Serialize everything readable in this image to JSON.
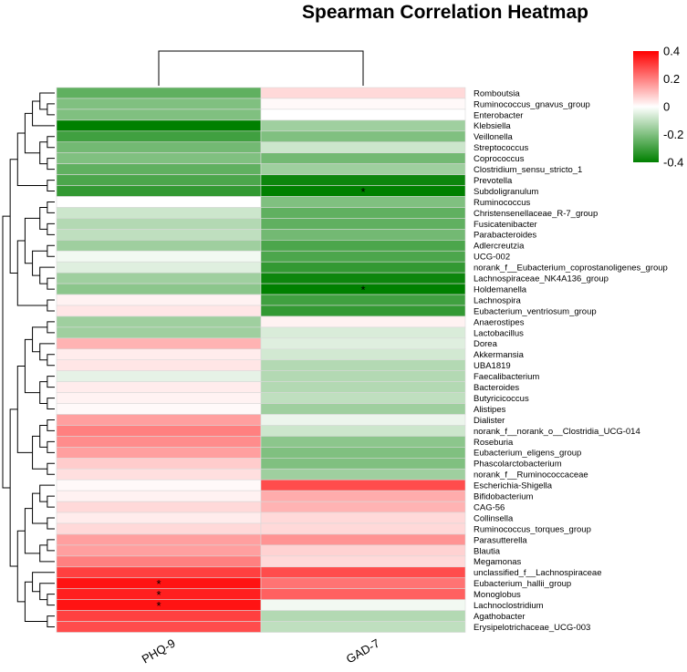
{
  "chart_data": {
    "type": "heatmap",
    "title": "Spearman Correlation Heatmap",
    "columns": [
      "PHQ-9",
      "GAD-7"
    ],
    "rows": [
      "Romboutsia",
      "Ruminococcus_gnavus_group",
      "Enterobacter",
      "Klebsiella",
      "Veillonella",
      "Streptococcus",
      "Coprococcus",
      "Clostridium_sensu_stricto_1",
      "Prevotella",
      "Subdoligranulum",
      "Ruminococcus",
      "Christensenellaceae_R-7_group",
      "Fusicatenibacter",
      "Parabacteroides",
      "Adlercreutzia",
      "UCG-002",
      "norank_f__Eubacterium_coprostanoligenes_group",
      "Lachnospiraceae_NK4A136_group",
      "Holdemanella",
      "Lachnospira",
      "Eubacterium_ventriosum_group",
      "Anaerostipes",
      "Lactobacillus",
      "Dorea",
      "Akkermansia",
      "UBA1819",
      "Faecalibacterium",
      "Bacteroides",
      "Butyricicoccus",
      "Alistipes",
      "Dialister",
      "norank_f__norank_o__Clostridia_UCG-014",
      "Roseburia",
      "Eubacterium_eligens_group",
      "Phascolarctobacterium",
      "norank_f__Ruminococcaceae",
      "Escherichia-Shigella",
      "Bifidobacterium",
      "CAG-56",
      "Collinsella",
      "Ruminococcus_torques_group",
      "Parasutterella",
      "Blautia",
      "Megamonas",
      "unclassified_f__Lachnospiraceae",
      "Eubacterium_hallii_group",
      "Monoglobus",
      "Lachnoclostridium",
      "Agathobacter",
      "Erysipelotrichaceae_UCG-003"
    ],
    "values": [
      [
        -0.25,
        0.06
      ],
      [
        -0.2,
        0.01
      ],
      [
        -0.2,
        0.0
      ],
      [
        -0.4,
        -0.15
      ],
      [
        -0.3,
        -0.2
      ],
      [
        -0.22,
        -0.08
      ],
      [
        -0.2,
        -0.22
      ],
      [
        -0.25,
        -0.15
      ],
      [
        -0.28,
        -0.38
      ],
      [
        -0.32,
        -0.4
      ],
      [
        0.0,
        -0.2
      ],
      [
        -0.08,
        -0.25
      ],
      [
        -0.12,
        -0.25
      ],
      [
        -0.1,
        -0.22
      ],
      [
        -0.15,
        -0.28
      ],
      [
        -0.02,
        -0.28
      ],
      [
        -0.05,
        -0.32
      ],
      [
        -0.15,
        -0.38
      ],
      [
        -0.18,
        -0.4
      ],
      [
        0.02,
        -0.3
      ],
      [
        0.04,
        -0.32
      ],
      [
        -0.15,
        0.02
      ],
      [
        -0.15,
        -0.06
      ],
      [
        0.12,
        -0.05
      ],
      [
        0.03,
        -0.07
      ],
      [
        0.04,
        -0.12
      ],
      [
        -0.04,
        -0.12
      ],
      [
        0.03,
        -0.12
      ],
      [
        0.02,
        -0.1
      ],
      [
        0.01,
        -0.15
      ],
      [
        0.15,
        -0.03
      ],
      [
        0.2,
        -0.08
      ],
      [
        0.18,
        -0.18
      ],
      [
        0.15,
        -0.2
      ],
      [
        0.08,
        -0.2
      ],
      [
        0.05,
        -0.15
      ],
      [
        0.01,
        0.28
      ],
      [
        0.02,
        0.13
      ],
      [
        0.06,
        0.12
      ],
      [
        0.03,
        0.06
      ],
      [
        0.06,
        0.06
      ],
      [
        0.15,
        0.17
      ],
      [
        0.15,
        0.07
      ],
      [
        0.2,
        0.06
      ],
      [
        0.3,
        0.28
      ],
      [
        0.37,
        0.22
      ],
      [
        0.35,
        0.25
      ],
      [
        0.37,
        -0.02
      ],
      [
        0.3,
        -0.12
      ],
      [
        0.28,
        -0.1
      ]
    ],
    "significant": [
      [
        "Subdoligranulum",
        "GAD-7"
      ],
      [
        "Holdemanella",
        "GAD-7"
      ],
      [
        "Eubacterium_hallii_group",
        "PHQ-9"
      ],
      [
        "Monoglobus",
        "PHQ-9"
      ],
      [
        "Lachnoclostridium",
        "PHQ-9"
      ]
    ],
    "significance_marker": "*",
    "colorbar": {
      "range": [
        -0.4,
        0.4
      ],
      "ticks": [
        0.4,
        0.2,
        0,
        -0.2,
        -0.4
      ],
      "tick_labels": [
        "0.4",
        "0.2",
        "0",
        "-0.2",
        "-0.4"
      ],
      "colors": {
        "low": "#008000",
        "mid": "#ffffff",
        "high": "#ff0000"
      },
      "placement": "top-right"
    },
    "dendrograms": {
      "rows": "left",
      "columns": "top"
    }
  }
}
